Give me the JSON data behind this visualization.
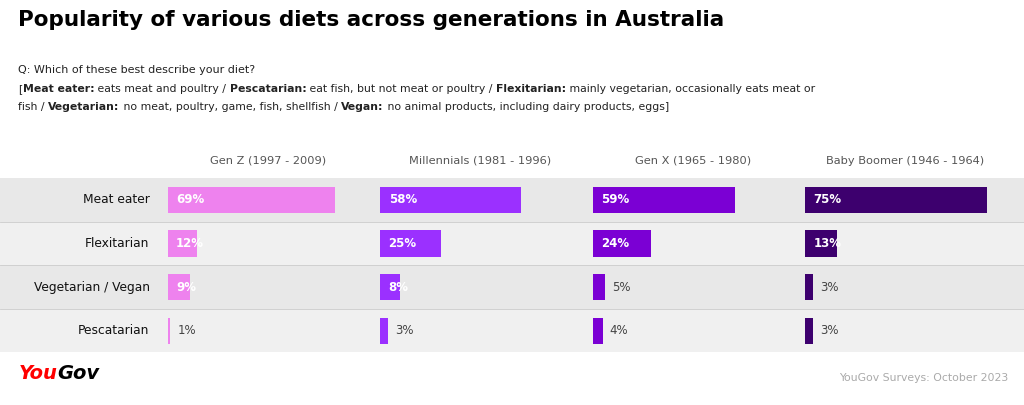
{
  "title": "Popularity of various diets across generations in Australia",
  "subtitle_line1": "Q: Which of these best describe your diet?",
  "subtitle_line2_parts": [
    [
      "[",
      false
    ],
    [
      "Meat eater:",
      true
    ],
    [
      " eats meat and poultry / ",
      false
    ],
    [
      "Pescatarian:",
      true
    ],
    [
      " eat fish, but not meat or poultry / ",
      false
    ],
    [
      "Flexitarian:",
      true
    ],
    [
      " mainly vegetarian, occasionally eats meat or",
      false
    ]
  ],
  "subtitle_line3_parts": [
    [
      "fish / ",
      false
    ],
    [
      "Vegetarian:",
      true
    ],
    [
      " no meat, poultry, game, fish, shellfish / ",
      false
    ],
    [
      "Vegan:",
      true
    ],
    [
      " no animal products, including dairy products, eggs]",
      false
    ]
  ],
  "generations": [
    "Gen Z (1997 - 2009)",
    "Millennials (1981 - 1996)",
    "Gen X (1965 - 1980)",
    "Baby Boomer (1946 - 1964)"
  ],
  "categories": [
    "Meat eater",
    "Flexitarian",
    "Vegetarian / Vegan",
    "Pescatarian"
  ],
  "data": {
    "Meat eater": [
      69,
      58,
      59,
      75
    ],
    "Flexitarian": [
      12,
      25,
      24,
      13
    ],
    "Vegetarian / Vegan": [
      9,
      8,
      5,
      3
    ],
    "Pescatarian": [
      1,
      3,
      4,
      3
    ]
  },
  "colors": [
    "#EE82EE",
    "#9B30FF",
    "#7B00D4",
    "#3D006E"
  ],
  "row_bg": [
    "#E8E8E8",
    "#F0F0F0",
    "#E8E8E8",
    "#F0F0F0"
  ],
  "footer_right": "YouGov Surveys: October 2023",
  "bg_color": "#FFFFFF",
  "scale_max": 80
}
